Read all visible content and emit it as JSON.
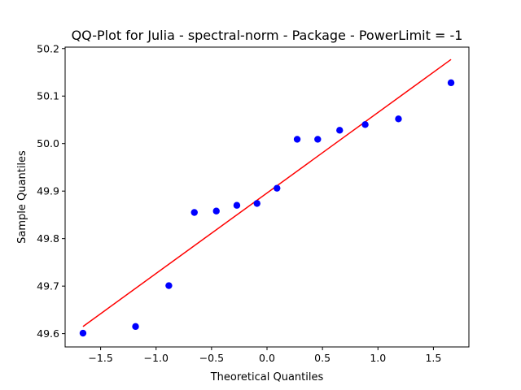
{
  "chart_data": {
    "type": "scatter",
    "title": "QQ-Plot for Julia - spectral-norm - Package - PowerLimit = -1",
    "xlabel": "Theoretical Quantiles",
    "ylabel": "Sample Quantiles",
    "xlim": [
      -1.82,
      1.82
    ],
    "ylim": [
      49.572,
      50.203
    ],
    "grid": false,
    "legend": "none",
    "x_ticks": [
      -1.5,
      -1.0,
      -0.5,
      0.0,
      0.5,
      1.0,
      1.5
    ],
    "x_tick_labels": [
      "−1.5",
      "−1.0",
      "−0.5",
      "0.0",
      "0.5",
      "1.0",
      "1.5"
    ],
    "y_ticks": [
      49.6,
      49.7,
      49.8,
      49.9,
      50.0,
      50.1,
      50.2
    ],
    "y_tick_labels": [
      "49.6",
      "49.7",
      "49.8",
      "49.9",
      "50.0",
      "50.1",
      "50.2"
    ],
    "series": [
      {
        "type": "scatter",
        "color": "#0000ff",
        "x": [
          -1.659,
          -1.185,
          -0.885,
          -0.655,
          -0.457,
          -0.272,
          -0.09,
          0.09,
          0.272,
          0.457,
          0.655,
          0.885,
          1.185,
          1.659
        ],
        "y": [
          49.601,
          49.615,
          49.701,
          49.855,
          49.858,
          49.87,
          49.874,
          49.906,
          50.009,
          50.009,
          50.028,
          50.04,
          50.052,
          50.128
        ]
      },
      {
        "type": "line",
        "color": "#ff0000",
        "x": [
          -1.659,
          1.659
        ],
        "y": [
          49.615,
          50.177
        ]
      }
    ]
  }
}
